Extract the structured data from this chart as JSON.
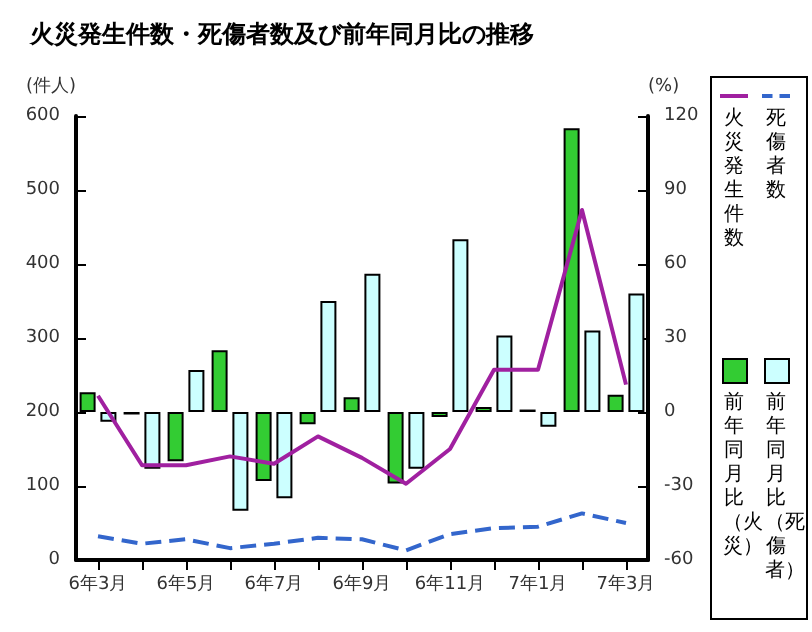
{
  "chart_data": {
    "type": "bar",
    "title": "火災発生件数・死傷者数及び前年同月比の推移",
    "ylabel": "(件人)",
    "y2label": "(%)",
    "categories": [
      "6年3月",
      null,
      "6年5月",
      null,
      "6年7月",
      null,
      "6年9月",
      null,
      "6年11月",
      null,
      "7年1月",
      null,
      "7年3月"
    ],
    "series": [
      {
        "name": "火災発生件数",
        "type": "line",
        "color": "#a020a0",
        "line_style": "solid",
        "values": [
          222,
          128,
          128,
          140,
          130,
          167,
          138,
          103,
          150,
          257,
          257,
          473,
          237
        ]
      },
      {
        "name": "死傷者数",
        "type": "line",
        "color": "#3366cc",
        "line_style": "dashed",
        "values": [
          32,
          22,
          28,
          16,
          22,
          30,
          28,
          13,
          35,
          43,
          45,
          63,
          50
        ]
      },
      {
        "name": "前年同月比（火災）",
        "axis": "y2",
        "color": "#33cc33",
        "values": [
          8,
          -1,
          -20,
          25,
          -28,
          -5,
          6,
          -29,
          -2,
          2,
          1,
          115,
          7
        ]
      },
      {
        "name": "前年同月比（死傷者）",
        "axis": "y2",
        "color": "#ccffff",
        "values": [
          -4,
          -23,
          17,
          -40,
          -35,
          45,
          56,
          -23,
          70,
          31,
          -6,
          33,
          48
        ]
      }
    ],
    "ylim": [
      0,
      600
    ],
    "yticks": [
      0,
      100,
      200,
      300,
      400,
      500,
      600
    ],
    "y2lim": [
      -60,
      120
    ],
    "y2ticks": [
      -60,
      -30,
      0,
      30,
      60,
      90,
      120
    ],
    "grid": false,
    "legend": "right",
    "marker": "none"
  }
}
